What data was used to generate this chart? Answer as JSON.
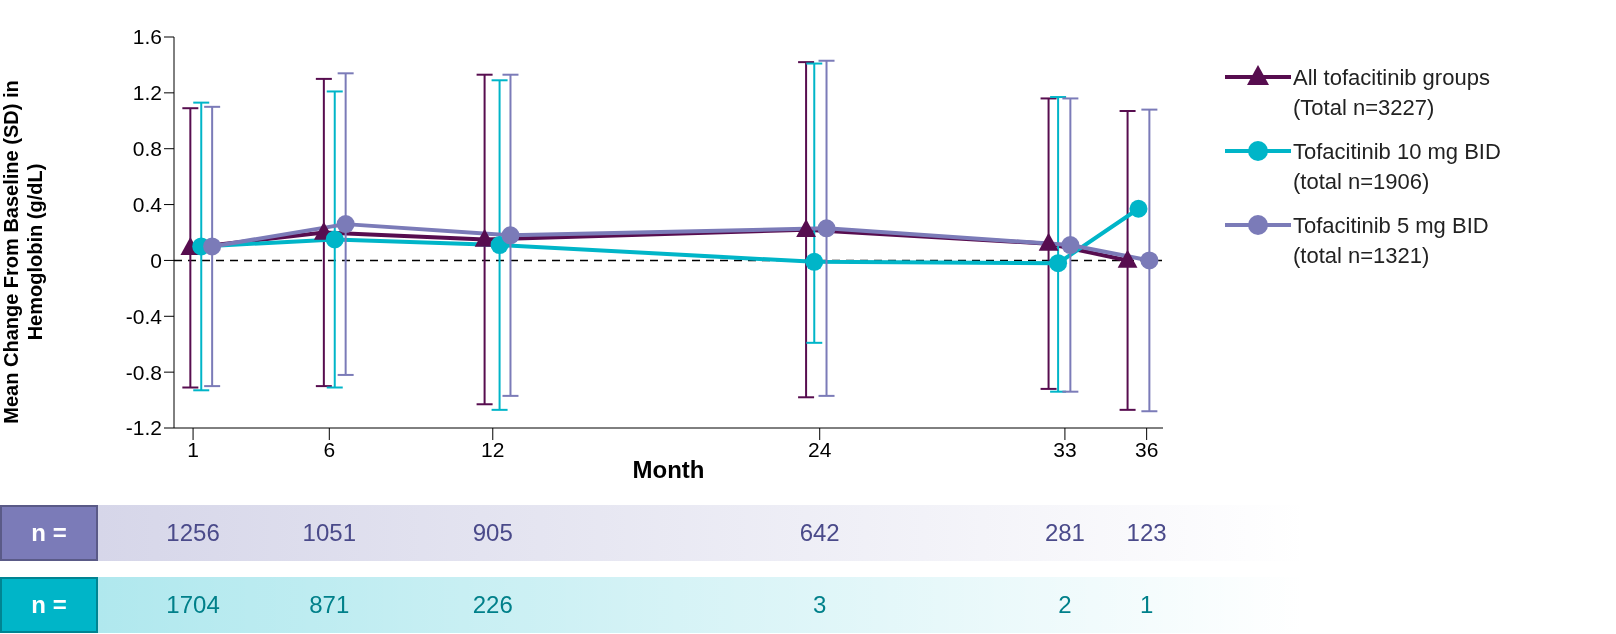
{
  "chart_data": {
    "type": "line",
    "xlabel": "Month",
    "ylabel": "Mean Change From Baseline (SD) in Hemoglobin (g/dL)",
    "series": [
      {
        "name": "All tofacitinib groups (Total n=3227)",
        "color": "#570d4f",
        "marker": "triangle",
        "x": [
          0.9,
          5.8,
          11.7,
          23.5,
          32.4,
          35.3
        ],
        "values": [
          0.09,
          0.2,
          0.15,
          0.22,
          0.12,
          0.0
        ],
        "errors": [
          1.0,
          1.1,
          1.18,
          1.2,
          1.04,
          1.07
        ]
      },
      {
        "name": "Tofacitinib 10 mg BID (total n=1906)",
        "color": "#00b5c8",
        "marker": "circle",
        "x": [
          1.3,
          6.2,
          12.25,
          23.8,
          32.75,
          35.7
        ],
        "values": [
          0.1,
          0.15,
          0.11,
          -0.01,
          -0.02,
          0.37
        ],
        "errors": [
          1.03,
          1.06,
          1.18,
          [
            -0.59,
            1.41
          ],
          [
            -0.94,
            1.17
          ],
          null
        ]
      },
      {
        "name": "Tofacitinib 5 mg BID (total n=1321)",
        "color": "#7b7bb8",
        "marker": "circle",
        "x": [
          1.7,
          6.6,
          12.65,
          24.25,
          33.2,
          36.1
        ],
        "values": [
          0.1,
          0.26,
          0.18,
          0.23,
          0.11,
          0.0
        ],
        "errors": [
          1.0,
          1.08,
          1.15,
          1.2,
          1.05,
          1.08
        ]
      }
    ],
    "xlim": [
      0.3,
      36.6
    ],
    "xticks": [
      1,
      6,
      12,
      24,
      33,
      36
    ],
    "ylim": [
      -1.2,
      1.6
    ],
    "yticks": [
      -1.2,
      -0.8,
      -0.4,
      0,
      0.4,
      0.8,
      1.2,
      1.6
    ],
    "ref_lines": [
      {
        "axis": "y",
        "value": 0,
        "color": "#000000",
        "line_style": "dashed"
      }
    ],
    "legend": "right",
    "grid": false,
    "line_style": "solid",
    "annotations": [
      "n =",
      "1256",
      "1051",
      "905",
      "642",
      "281",
      "123",
      "n =",
      "1704",
      "871",
      "226",
      "3",
      "2",
      "1"
    ]
  }
}
